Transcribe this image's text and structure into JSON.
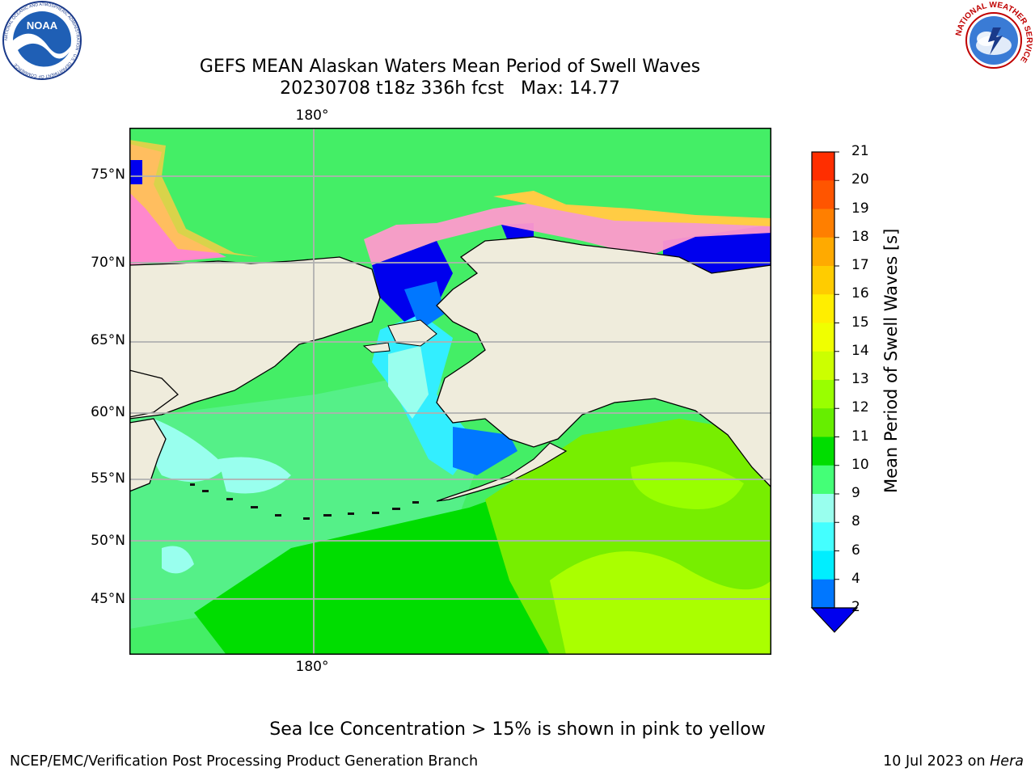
{
  "title": {
    "line1": "GEFS MEAN Alaskan Waters Mean Period of Swell Waves",
    "line2": "20230708 t18z 336h fcst   Max: 14.77"
  },
  "logos": {
    "left": {
      "text": "NOAA",
      "ring_text": "NATIONAL OCEANIC AND ATMOSPHERIC ADMINISTRATION · U.S. DEPARTMENT OF COMMERCE"
    },
    "right": {
      "ring_text": "NATIONAL WEATHER SERVICE"
    }
  },
  "map": {
    "lon_label_top": "180°",
    "lon_label_bottom": "180°",
    "lat_labels": [
      "75°N",
      "70°N",
      "65°N",
      "60°N",
      "55°N",
      "50°N",
      "45°N"
    ],
    "land_color": "#efecdc",
    "grid_color": "#b0b0b0"
  },
  "colorbar": {
    "label": "Mean Period of Swell Waves [s]",
    "ticks": [
      "21",
      "20",
      "19",
      "18",
      "17",
      "16",
      "15",
      "14",
      "13",
      "12",
      "11",
      "10",
      "9",
      "8",
      "6",
      "4",
      "2"
    ],
    "colors": [
      "#ff0000",
      "#ff2e00",
      "#ff5500",
      "#ff7f00",
      "#ffaa00",
      "#ffcc00",
      "#ffee00",
      "#f0ff00",
      "#ccff00",
      "#99ff00",
      "#66ee00",
      "#00dd00",
      "#44ff77",
      "#99ffee",
      "#44ffff",
      "#00eeff",
      "#0077ff"
    ],
    "extend_color": "#0000ee"
  },
  "caption": "Sea Ice Concentration > 15% is shown in pink to yellow",
  "footer": {
    "left": "NCEP/EMC/Verification Post Processing Product Generation Branch",
    "right_prefix": "10 Jul 2023 on ",
    "right_system": "Hera"
  }
}
